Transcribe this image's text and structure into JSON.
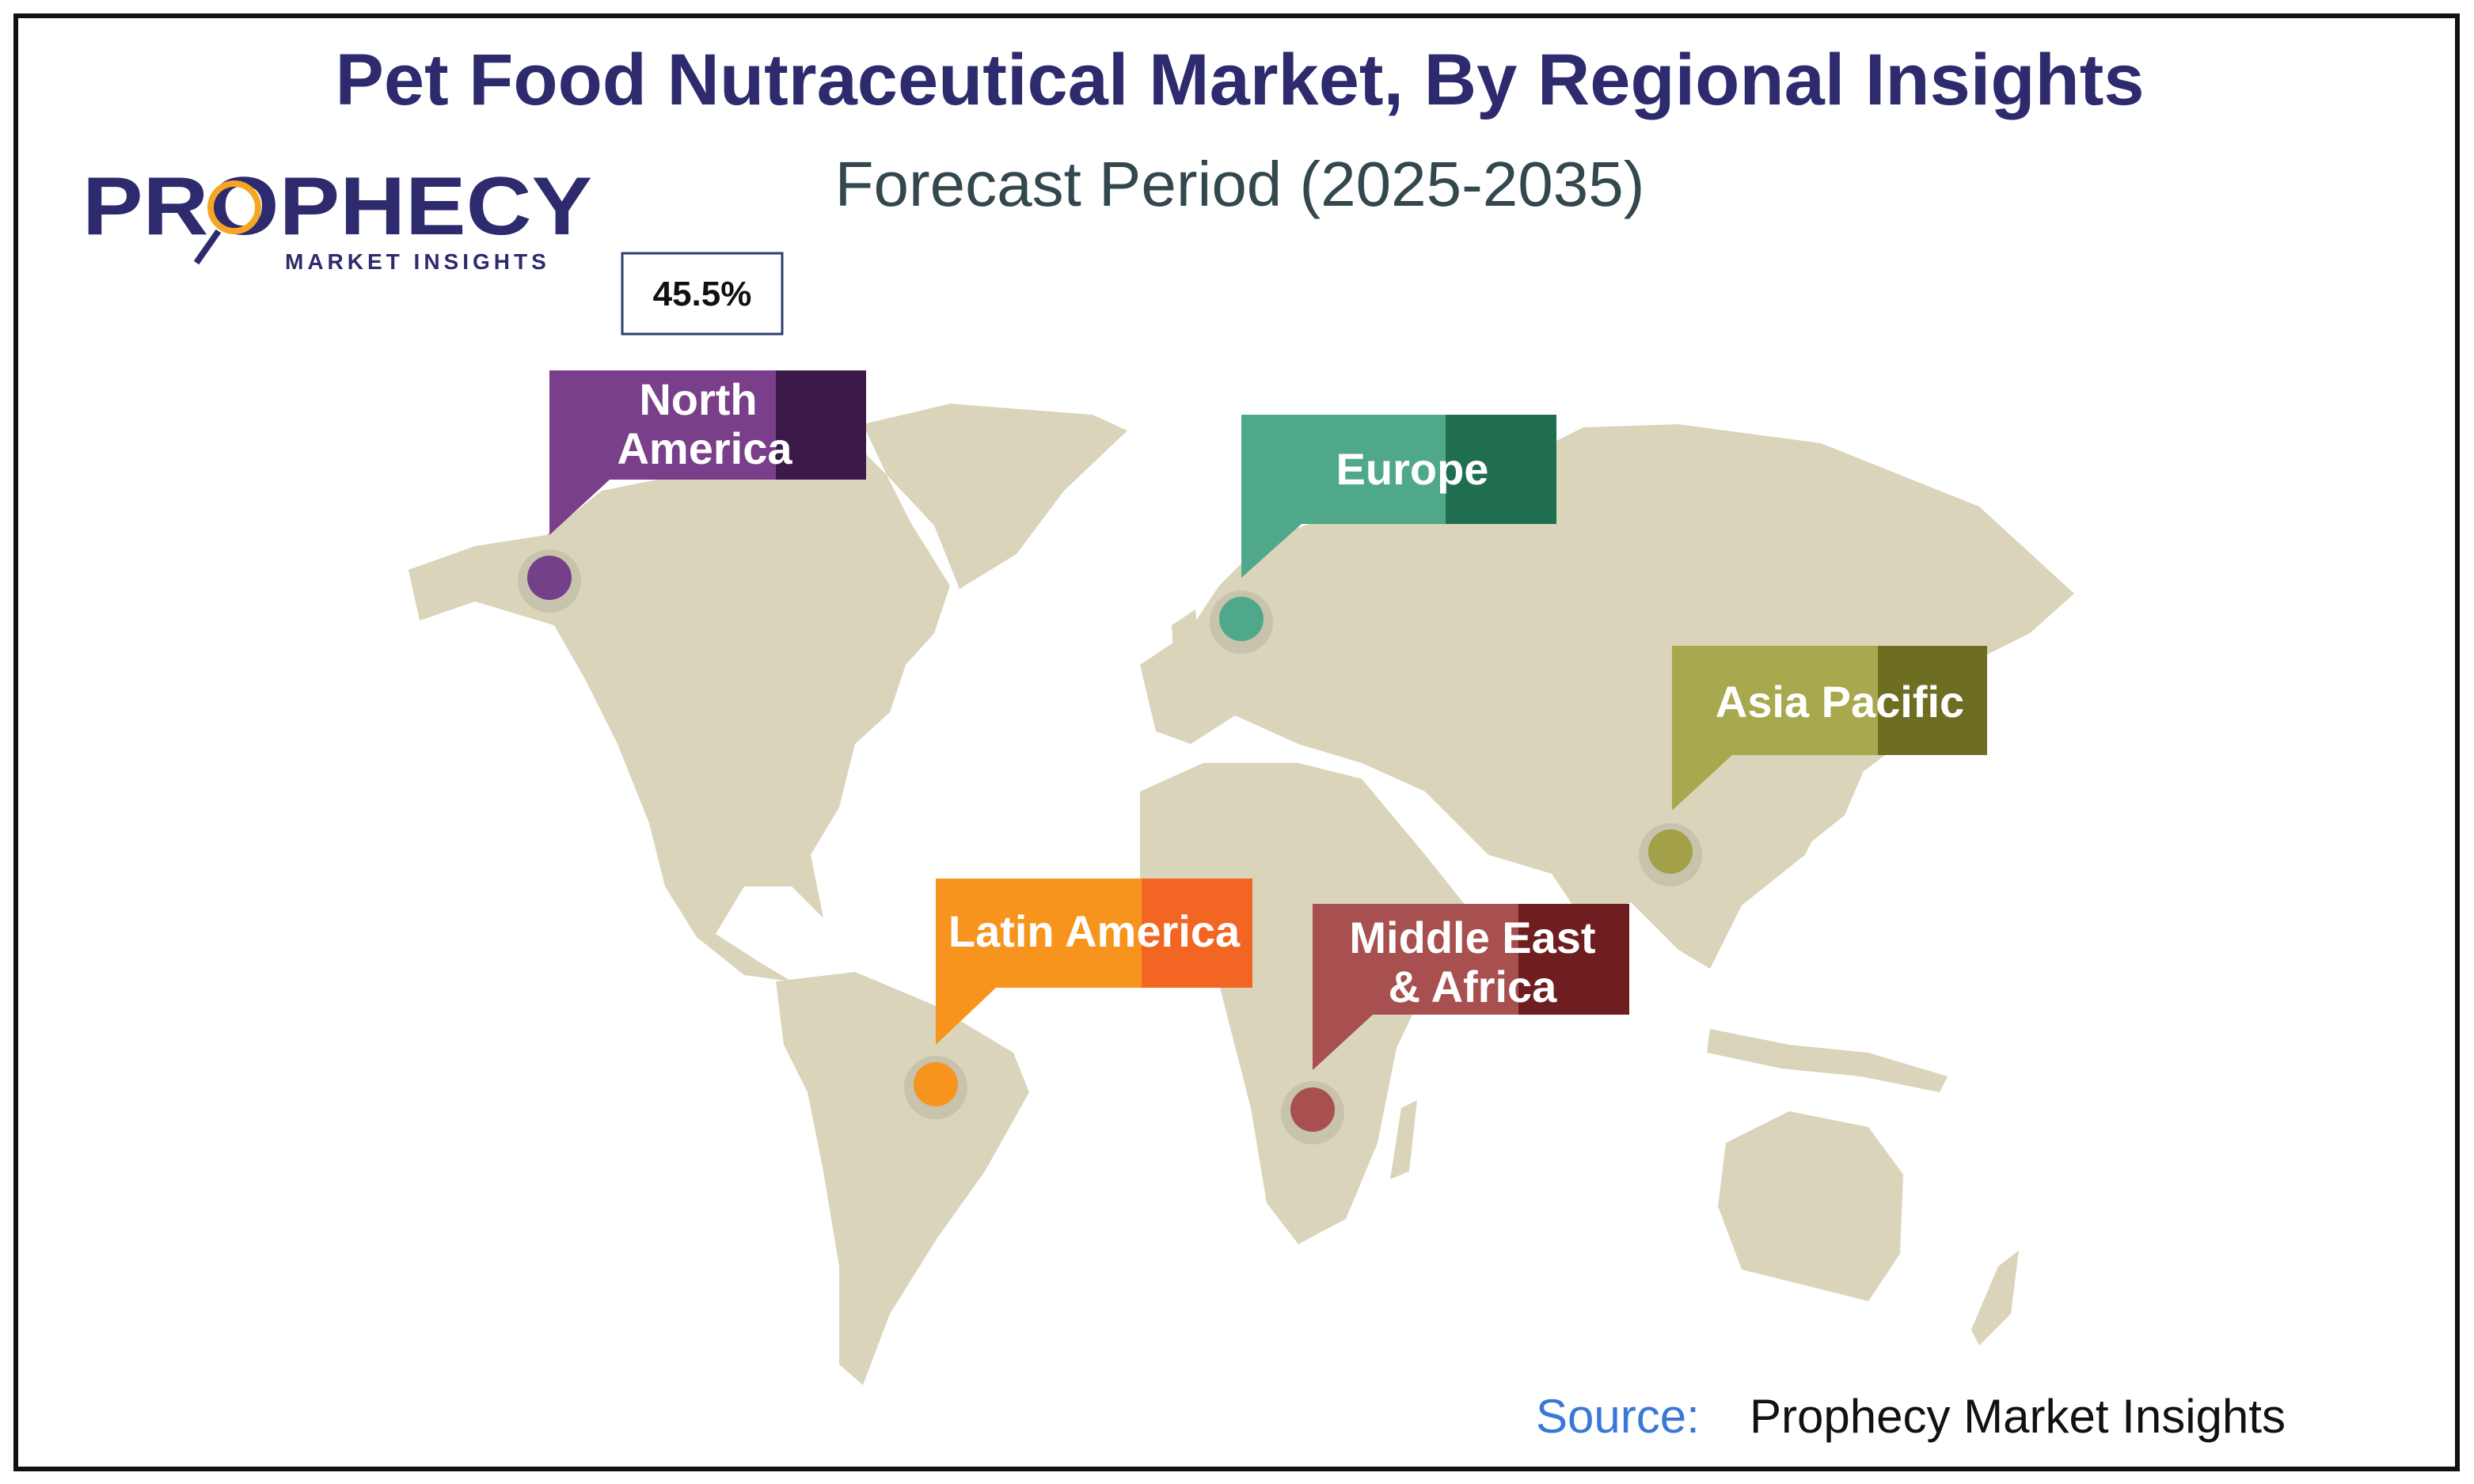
{
  "header": {
    "title": "Pet Food Nutraceutical Market, By Regional Insights",
    "subtitle": "Forecast Period (2025-2035)"
  },
  "logo": {
    "name": "PROPHECY",
    "tagline": "MARKET INSIGHTS"
  },
  "callout": {
    "value": "45.5%"
  },
  "regions": [
    {
      "label_lines": [
        "North",
        "America"
      ]
    },
    {
      "label_lines": [
        "Europe"
      ]
    },
    {
      "label_lines": [
        "Asia Pacific"
      ]
    },
    {
      "label_lines": [
        "Latin America"
      ]
    },
    {
      "label_lines": [
        "Middle East",
        "& Africa"
      ]
    }
  ],
  "source": {
    "label": "Source:",
    "text": "Prophecy Market Insights"
  }
}
